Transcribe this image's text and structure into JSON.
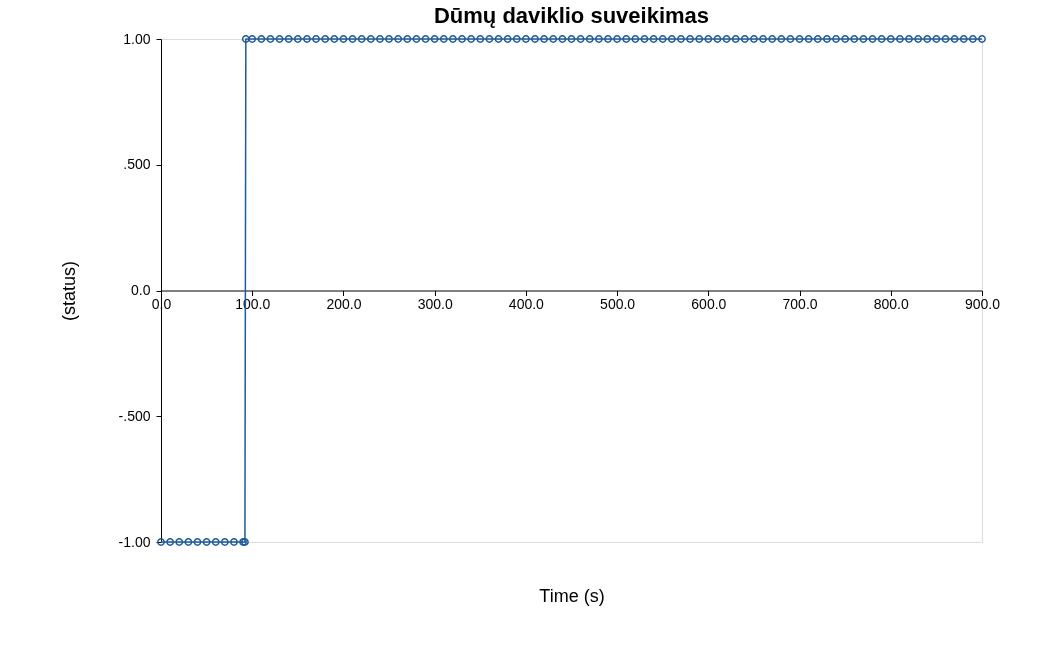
{
  "chart_data": {
    "type": "line",
    "title": "Dūmų daviklio suveikimas",
    "xlabel": "Time (s)",
    "ylabel": "(status)",
    "x": [
      0,
      10,
      20,
      30,
      40,
      50,
      60,
      70,
      80,
      90,
      92,
      93,
      100,
      110,
      120,
      130,
      140,
      150,
      160,
      170,
      180,
      190,
      200,
      210,
      220,
      230,
      240,
      250,
      260,
      270,
      280,
      290,
      300,
      310,
      320,
      330,
      340,
      350,
      360,
      370,
      380,
      390,
      400,
      410,
      420,
      430,
      440,
      450,
      460,
      470,
      480,
      490,
      500,
      510,
      520,
      530,
      540,
      550,
      560,
      570,
      580,
      590,
      600,
      610,
      620,
      630,
      640,
      650,
      660,
      670,
      680,
      690,
      700,
      710,
      720,
      730,
      740,
      750,
      760,
      770,
      780,
      790,
      800,
      810,
      820,
      830,
      840,
      850,
      860,
      870,
      880,
      890,
      900
    ],
    "series": [
      {
        "color": "#1f5a99",
        "values": [
          -1,
          -1,
          -1,
          -1,
          -1,
          -1,
          -1,
          -1,
          -1,
          -1,
          -1,
          1,
          1,
          1,
          1,
          1,
          1,
          1,
          1,
          1,
          1,
          1,
          1,
          1,
          1,
          1,
          1,
          1,
          1,
          1,
          1,
          1,
          1,
          1,
          1,
          1,
          1,
          1,
          1,
          1,
          1,
          1,
          1,
          1,
          1,
          1,
          1,
          1,
          1,
          1,
          1,
          1,
          1,
          1,
          1,
          1,
          1,
          1,
          1,
          1,
          1,
          1,
          1,
          1,
          1,
          1,
          1,
          1,
          1,
          1,
          1,
          1,
          1,
          1,
          1,
          1,
          1,
          1,
          1,
          1,
          1,
          1,
          1,
          1,
          1,
          1,
          1,
          1,
          1,
          1,
          1,
          1,
          1
        ]
      }
    ],
    "xlim": [
      0,
      900
    ],
    "xticks": [
      {
        "value": 0,
        "label": "0.0"
      },
      {
        "value": 100,
        "label": "100.0"
      },
      {
        "value": 200,
        "label": "200.0"
      },
      {
        "value": 300,
        "label": "300.0"
      },
      {
        "value": 400,
        "label": "400.0"
      },
      {
        "value": 500,
        "label": "500.0"
      },
      {
        "value": 600,
        "label": "600.0"
      },
      {
        "value": 700,
        "label": "700.0"
      },
      {
        "value": 800,
        "label": "800.0"
      },
      {
        "value": 900,
        "label": "900.0"
      }
    ],
    "ylim": [
      -1,
      1
    ],
    "yticks": [
      {
        "value": -1,
        "label": "-1.00"
      },
      {
        "value": -0.5,
        "label": "-.500"
      },
      {
        "value": 0,
        "label": "0.0"
      },
      {
        "value": 0.5,
        "label": ".500"
      },
      {
        "value": 1,
        "label": "1.00"
      }
    ],
    "grid": false,
    "marker": "circle",
    "line_style": "solid"
  }
}
